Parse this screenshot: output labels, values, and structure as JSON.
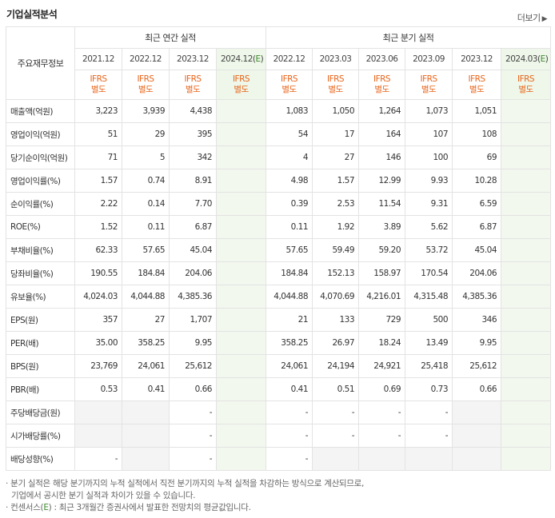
{
  "header": {
    "title": "기업실적분석",
    "more_label": "더보기",
    "more_icon": "chevron-right-icon"
  },
  "table": {
    "corner_label": "주요재무정보",
    "annual_group": "최근 연간 실적",
    "quarter_group": "최근 분기 실적",
    "annual_periods": [
      "2021.12",
      "2022.12",
      "2023.12",
      "2024.12(E)"
    ],
    "quarter_periods": [
      "2022.12",
      "2023.03",
      "2023.06",
      "2023.09",
      "2023.12",
      "2024.03(E)"
    ],
    "basis_line1": "IFRS",
    "basis_line2": "별도",
    "rows": [
      {
        "label": "매출액(억원)",
        "annual": [
          "3,223",
          "3,939",
          "4,438",
          ""
        ],
        "quarter": [
          "1,083",
          "1,050",
          "1,264",
          "1,073",
          "1,051",
          ""
        ]
      },
      {
        "label": "영업이익(억원)",
        "annual": [
          "51",
          "29",
          "395",
          ""
        ],
        "quarter": [
          "54",
          "17",
          "164",
          "107",
          "108",
          ""
        ]
      },
      {
        "label": "당기순이익(억원)",
        "annual": [
          "71",
          "5",
          "342",
          ""
        ],
        "quarter": [
          "4",
          "27",
          "146",
          "100",
          "69",
          ""
        ]
      },
      {
        "label": "영업이익률(%)",
        "annual": [
          "1.57",
          "0.74",
          "8.91",
          ""
        ],
        "quarter": [
          "4.98",
          "1.57",
          "12.99",
          "9.93",
          "10.28",
          ""
        ]
      },
      {
        "label": "순이익률(%)",
        "annual": [
          "2.22",
          "0.14",
          "7.70",
          ""
        ],
        "quarter": [
          "0.39",
          "2.53",
          "11.54",
          "9.31",
          "6.59",
          ""
        ]
      },
      {
        "label": "ROE(%)",
        "annual": [
          "1.52",
          "0.11",
          "6.87",
          ""
        ],
        "quarter": [
          "0.11",
          "1.92",
          "3.89",
          "5.62",
          "6.87",
          ""
        ]
      },
      {
        "label": "부채비율(%)",
        "annual": [
          "62.33",
          "57.65",
          "45.04",
          ""
        ],
        "quarter": [
          "57.65",
          "59.49",
          "59.20",
          "53.72",
          "45.04",
          ""
        ]
      },
      {
        "label": "당좌비율(%)",
        "annual": [
          "190.55",
          "184.84",
          "204.06",
          ""
        ],
        "quarter": [
          "184.84",
          "152.13",
          "158.97",
          "170.54",
          "204.06",
          ""
        ]
      },
      {
        "label": "유보율(%)",
        "annual": [
          "4,024.03",
          "4,044.88",
          "4,385.36",
          ""
        ],
        "quarter": [
          "4,044.88",
          "4,070.69",
          "4,216.01",
          "4,315.48",
          "4,385.36",
          ""
        ]
      },
      {
        "label": "EPS(원)",
        "annual": [
          "357",
          "27",
          "1,707",
          ""
        ],
        "quarter": [
          "21",
          "133",
          "729",
          "500",
          "346",
          ""
        ]
      },
      {
        "label": "PER(배)",
        "annual": [
          "35.00",
          "358.25",
          "9.95",
          ""
        ],
        "quarter": [
          "358.25",
          "26.97",
          "18.24",
          "13.49",
          "9.95",
          ""
        ]
      },
      {
        "label": "BPS(원)",
        "annual": [
          "23,769",
          "24,061",
          "25,612",
          ""
        ],
        "quarter": [
          "24,061",
          "24,194",
          "24,921",
          "25,418",
          "25,612",
          ""
        ]
      },
      {
        "label": "PBR(배)",
        "annual": [
          "0.53",
          "0.41",
          "0.66",
          ""
        ],
        "quarter": [
          "0.41",
          "0.51",
          "0.69",
          "0.73",
          "0.66",
          ""
        ]
      },
      {
        "label": "주당배당금(원)",
        "annual": [
          "",
          "",
          "-",
          ""
        ],
        "quarter": [
          "-",
          "-",
          "-",
          "-",
          "",
          ""
        ]
      },
      {
        "label": "시가배당률(%)",
        "annual": [
          "",
          "",
          "-",
          ""
        ],
        "quarter": [
          "-",
          "-",
          "-",
          "-",
          "",
          ""
        ]
      },
      {
        "label": "배당성향(%)",
        "annual": [
          "-",
          "",
          "-",
          ""
        ],
        "quarter": [
          "-",
          "",
          "",
          "",
          "",
          ""
        ]
      }
    ]
  },
  "notes": {
    "line1": "분기 실적은 해당 분기까지의 누적 실적에서 직전 분기까지의 누적 실적을 차감하는 방식으로 계산되므로,",
    "line2": "기업에서 공시한 분기 실적과 차이가 있을 수 있습니다.",
    "line3_prefix": "컨센서스(",
    "line3_e": "E",
    "line3_suffix": ") : 최근 3개월간 증권사에서 발표한 전망치의 평균값입니다."
  }
}
